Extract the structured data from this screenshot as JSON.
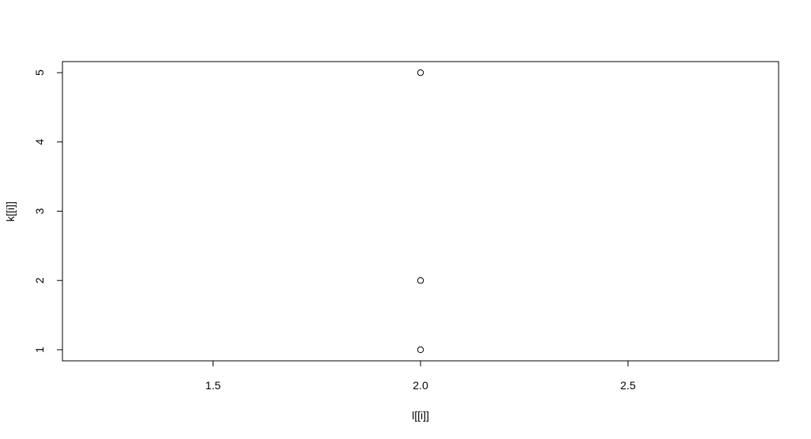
{
  "chart_data": {
    "type": "scatter",
    "title": "",
    "xlabel": "l[[i]]",
    "ylabel": "k[[i]]",
    "xlim": [
      1.137,
      2.863
    ],
    "ylim": [
      0.84,
      5.16
    ],
    "xticks": [
      1.5,
      2.0,
      2.5
    ],
    "xtick_labels": [
      "1.5",
      "2.0",
      "2.5"
    ],
    "yticks": [
      1,
      2,
      3,
      4,
      5
    ],
    "ytick_labels": [
      "1",
      "2",
      "3",
      "4",
      "5"
    ],
    "grid": false,
    "marker": "open-circle",
    "points": [
      {
        "x": 2.0,
        "y": 5
      },
      {
        "x": 2.0,
        "y": 2
      },
      {
        "x": 2.0,
        "y": 1
      }
    ]
  }
}
